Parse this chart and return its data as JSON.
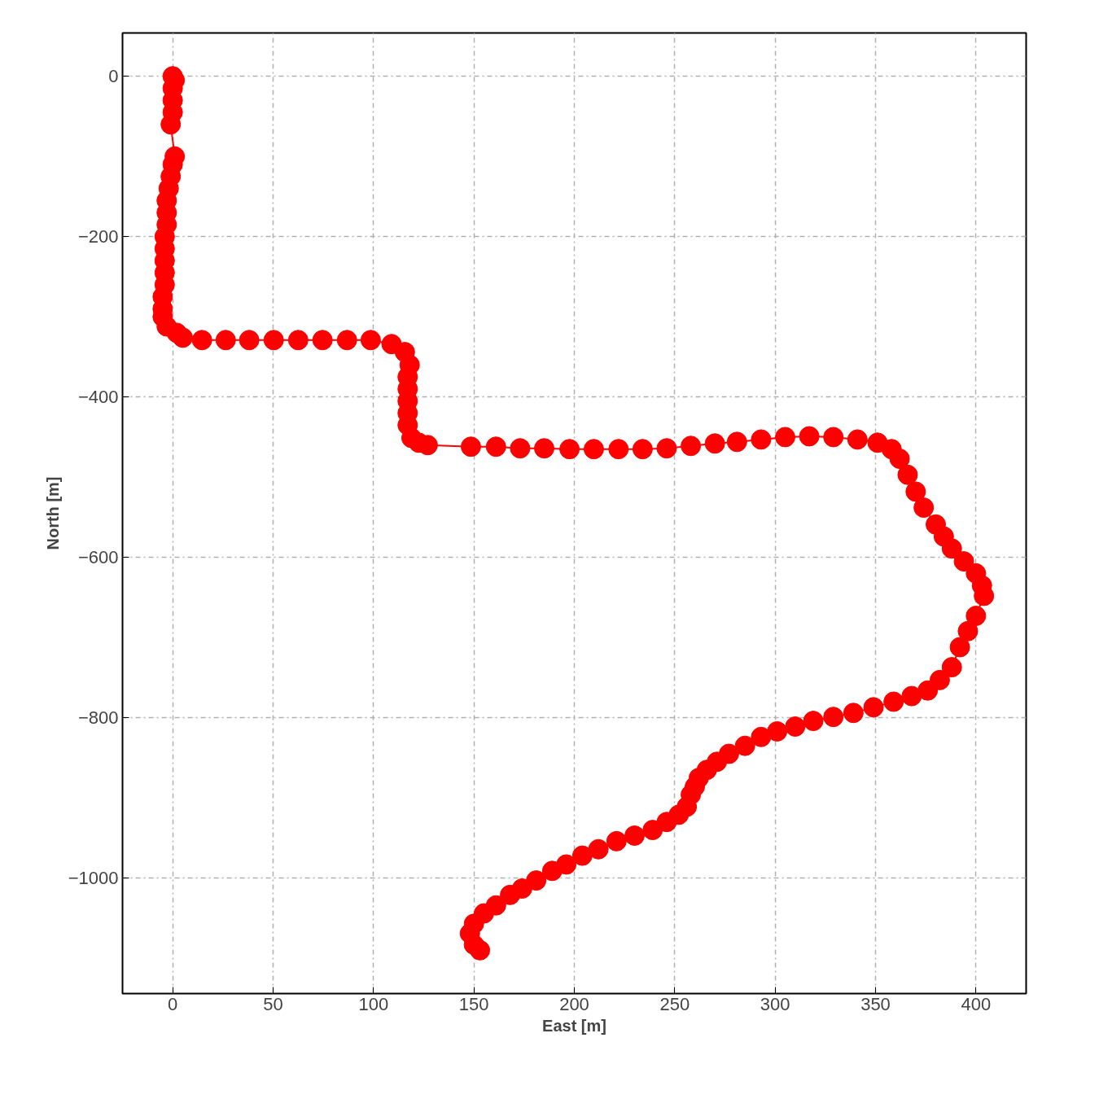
{
  "chart_data": {
    "type": "line",
    "xlabel": "East [m]",
    "ylabel": "North [m]",
    "xlim": [
      -25,
      425
    ],
    "ylim": [
      -1144,
      54
    ],
    "xticks": [
      0,
      50,
      100,
      150,
      200,
      250,
      300,
      350,
      400
    ],
    "yticks": [
      0,
      -200,
      -400,
      -600,
      -800,
      -1000
    ],
    "grid": true,
    "marker": "circle",
    "line_style": "solid",
    "series": [
      {
        "color": "#ff0000",
        "x": [
          0,
          1,
          0,
          0,
          0,
          -1,
          1,
          0,
          -1,
          -2,
          -3,
          -3,
          -3,
          -4,
          -4,
          -4,
          -4,
          -4,
          -5,
          -5,
          -5,
          -3,
          2,
          5,
          14.6,
          26.4,
          38.1,
          50.3,
          62.5,
          74.6,
          86.8,
          98.6,
          109,
          115.6,
          118,
          117,
          117,
          117,
          117,
          117,
          118.9,
          122.5,
          127,
          148.5,
          161,
          173,
          185,
          197.6,
          209.7,
          222,
          234,
          246,
          258,
          270,
          281,
          293,
          305,
          317,
          329,
          341,
          351,
          358,
          362,
          366,
          370,
          374,
          380,
          384,
          388,
          394,
          400,
          403,
          404,
          400,
          396,
          392,
          388,
          382,
          376,
          368,
          359,
          349,
          339,
          329,
          319,
          310,
          301,
          293,
          285,
          277,
          271,
          266,
          262,
          260,
          258,
          256,
          252,
          246,
          239,
          230,
          221,
          212,
          204,
          196,
          189,
          181,
          174,
          168,
          161,
          155,
          150,
          148,
          150,
          153
        ],
        "values": [
          0,
          -5,
          -15,
          -30,
          -45,
          -60,
          -100,
          -110,
          -125,
          -140,
          -155,
          -170,
          -185,
          -200,
          -215,
          -230,
          -245,
          -260,
          -275,
          -290,
          -300,
          -312,
          -320,
          -326,
          -329,
          -329,
          -329,
          -329,
          -329,
          -329,
          -329,
          -329,
          -334,
          -344,
          -360,
          -375,
          -390,
          -405,
          -420,
          -435,
          -451,
          -457,
          -460,
          -462,
          -462,
          -464,
          -464,
          -465,
          -465,
          -465,
          -465,
          -464,
          -461,
          -458,
          -456,
          -453,
          -450,
          -449,
          -450,
          -453,
          -457,
          -465,
          -477,
          -497,
          -518,
          -538,
          -559,
          -574,
          -589,
          -605,
          -620,
          -635,
          -648,
          -673,
          -692,
          -712,
          -737,
          -753,
          -766,
          -773,
          -780,
          -787,
          -794,
          -799,
          -804,
          -811,
          -817,
          -824,
          -835,
          -845,
          -855,
          -865,
          -875,
          -886,
          -896,
          -911,
          -921,
          -930,
          -940,
          -947,
          -954,
          -964,
          -972,
          -983,
          -991,
          -1003,
          -1013,
          -1021,
          -1034,
          -1044,
          -1057,
          -1069,
          -1083,
          -1090
        ]
      }
    ]
  }
}
